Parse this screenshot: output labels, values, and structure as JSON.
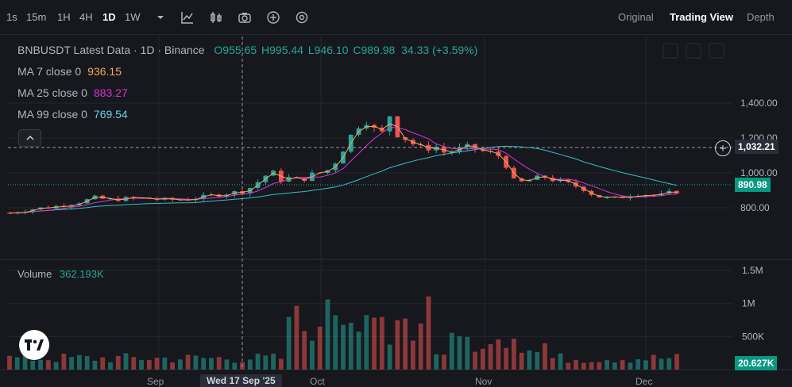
{
  "toolbar": {
    "timeframes": [
      "1s",
      "15m",
      "1H",
      "4H",
      "1D",
      "1W"
    ],
    "active_timeframe": "1D",
    "tools": [
      "chevron-down-icon",
      "chart-type-icon",
      "indicators-icon",
      "camera-icon",
      "add-circle-icon",
      "settings-icon"
    ],
    "views": [
      "Original",
      "Trading View",
      "Depth"
    ],
    "active_view": "Trading View"
  },
  "legend": {
    "title": "BNBUSDT Latest Data · 1D · Binance",
    "open": "O955.65",
    "high": "H995.44",
    "low": "L946.10",
    "close": "C989.98",
    "change": "34.33 (+3.59%)",
    "ma7_label": "MA 7 close 0",
    "ma7_value": "936.15",
    "ma25_label": "MA 25 close 0",
    "ma25_value": "883.27",
    "ma99_label": "MA 99 close 0",
    "ma99_value": "769.54"
  },
  "price_axis": {
    "labels": [
      "1,400.00",
      "1,200.00",
      "1,000.00",
      "800.00"
    ],
    "crosshair_price": "1,032.21",
    "last_price": "890.98"
  },
  "volume": {
    "label": "Volume",
    "value": "362.193K",
    "axis_labels": [
      "1.5M",
      "1M",
      "500K"
    ],
    "last_volume": "20.627K"
  },
  "time_axis": {
    "crosshair_date": "Wed 17 Sep '25",
    "labels": [
      "Sep",
      "Oct",
      "Nov",
      "Dec"
    ]
  },
  "colors": {
    "up": "#26a69a",
    "down": "#ef5350",
    "ma7": "#f7a35c",
    "ma25": "#d633d6",
    "ma99": "#32c1c1"
  },
  "chart_data": {
    "type": "candlestick",
    "symbol": "BNBUSDT",
    "interval": "1D",
    "ylim": [
      760,
      1420
    ],
    "series_ohlc": [],
    "ma7_close": 936.15,
    "ma25_close": 883.27,
    "ma99_close": 769.54,
    "last_close": 890.98
  }
}
